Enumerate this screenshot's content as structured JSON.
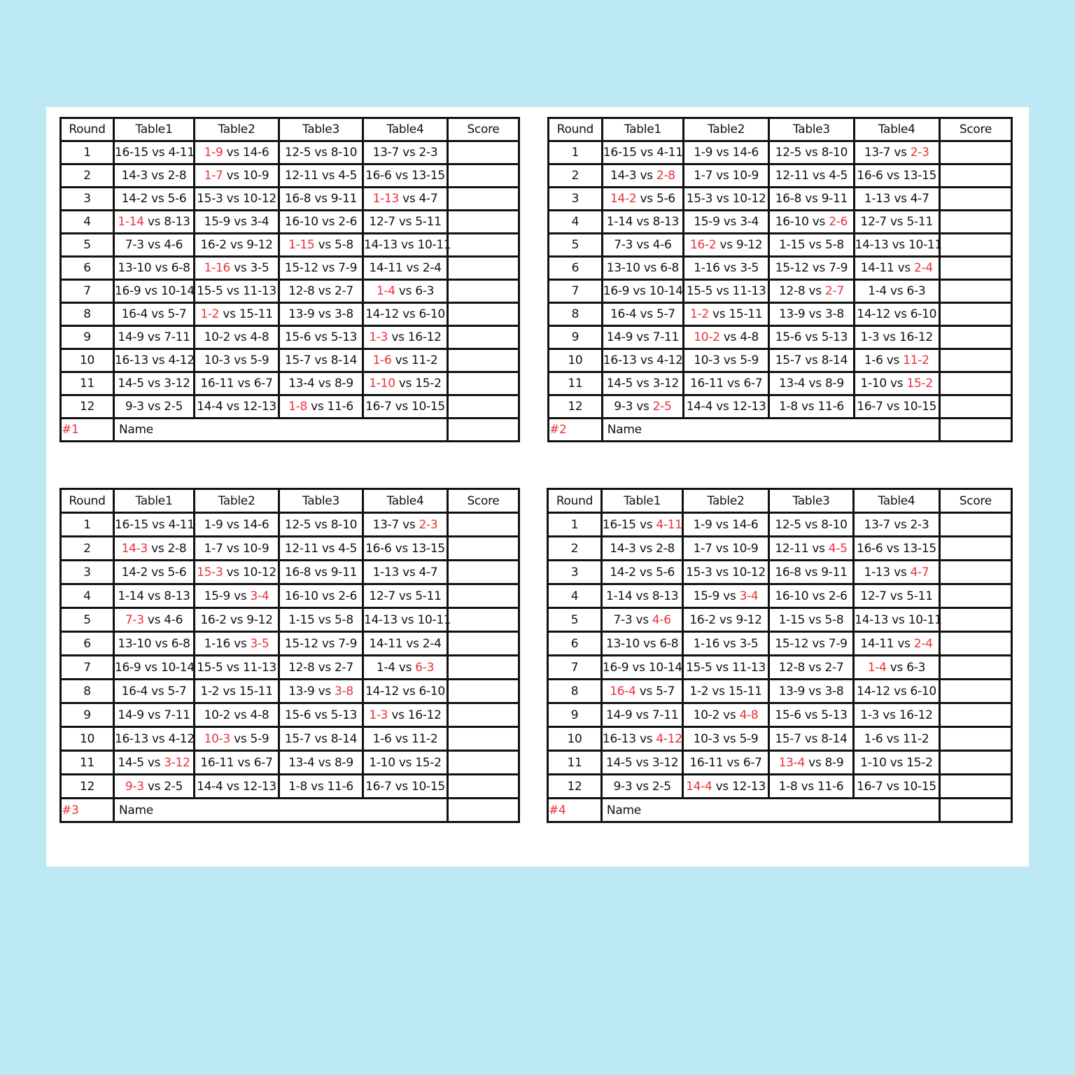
{
  "headers": [
    "Round",
    "Table1",
    "Table2",
    "Table3",
    "Table4",
    "Score"
  ],
  "name_label": "Name",
  "highlight_color": "#e8323a",
  "rounds": [
    {
      "round": "1",
      "matches": [
        [
          "16-15",
          "4-11"
        ],
        [
          "1-9",
          "14-6"
        ],
        [
          "12-5",
          "8-10"
        ],
        [
          "13-7",
          "2-3"
        ]
      ]
    },
    {
      "round": "2",
      "matches": [
        [
          "14-3",
          "2-8"
        ],
        [
          "1-7",
          "10-9"
        ],
        [
          "12-11",
          "4-5"
        ],
        [
          "16-6",
          "13-15"
        ]
      ]
    },
    {
      "round": "3",
      "matches": [
        [
          "14-2",
          "5-6"
        ],
        [
          "15-3",
          "10-12"
        ],
        [
          "16-8",
          "9-11"
        ],
        [
          "1-13",
          "4-7"
        ]
      ]
    },
    {
      "round": "4",
      "matches": [
        [
          "1-14",
          "8-13"
        ],
        [
          "15-9",
          "3-4"
        ],
        [
          "16-10",
          "2-6"
        ],
        [
          "12-7",
          "5-11"
        ]
      ]
    },
    {
      "round": "5",
      "matches": [
        [
          "7-3",
          "4-6"
        ],
        [
          "16-2",
          "9-12"
        ],
        [
          "1-15",
          "5-8"
        ],
        [
          "14-13",
          "10-11"
        ]
      ]
    },
    {
      "round": "6",
      "matches": [
        [
          "13-10",
          "6-8"
        ],
        [
          "1-16",
          "3-5"
        ],
        [
          "15-12",
          "7-9"
        ],
        [
          "14-11",
          "2-4"
        ]
      ]
    },
    {
      "round": "7",
      "matches": [
        [
          "16-9",
          "10-14"
        ],
        [
          "15-5",
          "11-13"
        ],
        [
          "12-8",
          "2-7"
        ],
        [
          "1-4",
          "6-3"
        ]
      ]
    },
    {
      "round": "8",
      "matches": [
        [
          "16-4",
          "5-7"
        ],
        [
          "1-2",
          "15-11"
        ],
        [
          "13-9",
          "3-8"
        ],
        [
          "14-12",
          "6-10"
        ]
      ]
    },
    {
      "round": "9",
      "matches": [
        [
          "14-9",
          "7-11"
        ],
        [
          "10-2",
          "4-8"
        ],
        [
          "15-6",
          "5-13"
        ],
        [
          "1-3",
          "16-12"
        ]
      ]
    },
    {
      "round": "10",
      "matches": [
        [
          "16-13",
          "4-12"
        ],
        [
          "10-3",
          "5-9"
        ],
        [
          "15-7",
          "8-14"
        ],
        [
          "1-6",
          "11-2"
        ]
      ]
    },
    {
      "round": "11",
      "matches": [
        [
          "14-5",
          "3-12"
        ],
        [
          "16-11",
          "6-7"
        ],
        [
          "13-4",
          "8-9"
        ],
        [
          "1-10",
          "15-2"
        ]
      ]
    },
    {
      "round": "12",
      "matches": [
        [
          "9-3",
          "2-5"
        ],
        [
          "14-4",
          "12-13"
        ],
        [
          "1-8",
          "11-6"
        ],
        [
          "16-7",
          "10-15"
        ]
      ]
    }
  ],
  "vs_label": "vs",
  "cards": [
    {
      "number": "#1",
      "highlights": [
        "2L",
        "2L",
        "4L",
        "1L",
        "3L",
        "2L",
        "4L",
        "2L",
        "4L",
        "4L",
        "4L",
        "3L"
      ]
    },
    {
      "number": "#2",
      "highlights": [
        "4R",
        "1R",
        "1L",
        "3R",
        "2L",
        "4R",
        "3R",
        "2L",
        "2L",
        "4R",
        "4R",
        "1R"
      ]
    },
    {
      "number": "#3",
      "highlights": [
        "4R",
        "1L",
        "2L",
        "2R",
        "1L",
        "2R",
        "4R",
        "3R",
        "4L",
        "2L",
        "1R",
        "1L"
      ]
    },
    {
      "number": "#4",
      "highlights": [
        "1R",
        "3R",
        "4R",
        "2R",
        "1R",
        "4R",
        "4L",
        "1L",
        "2R",
        "1R",
        "3L",
        "2L"
      ]
    }
  ]
}
